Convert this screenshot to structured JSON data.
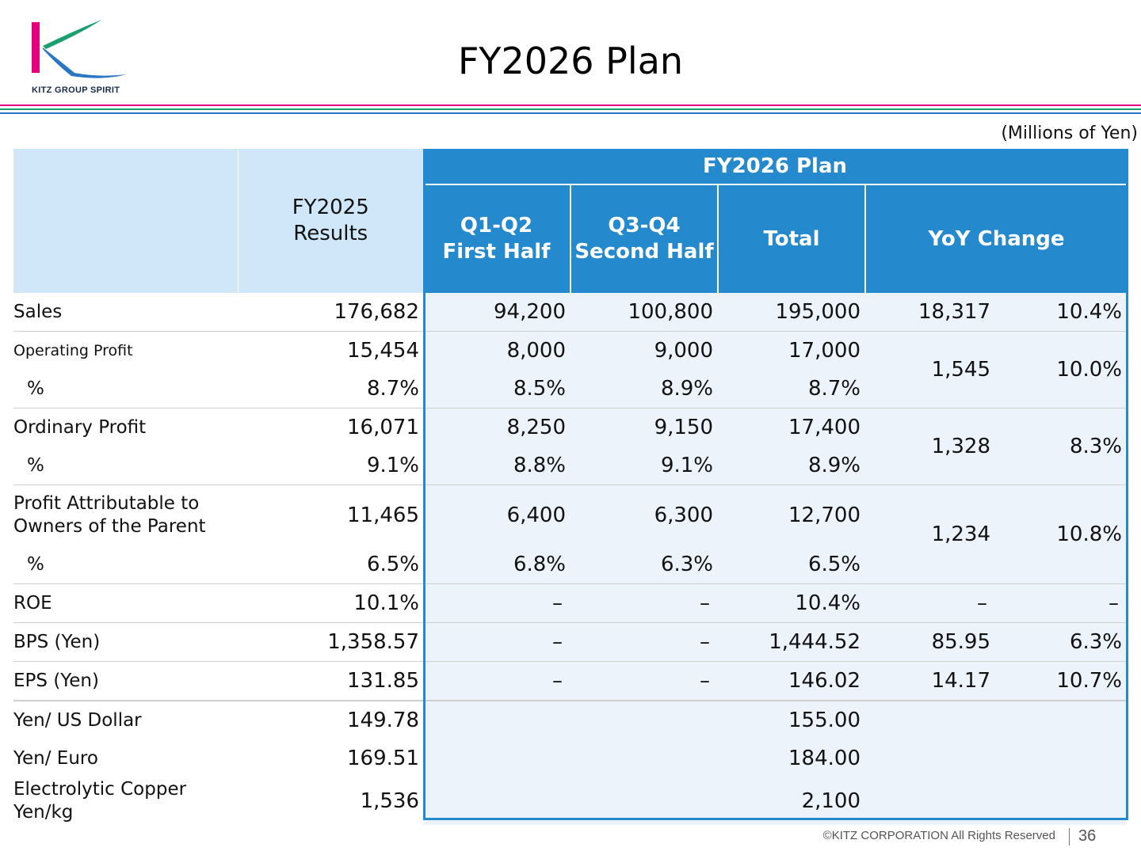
{
  "header": {
    "logo_text": "KITZ GROUP SPIRIT",
    "title": "FY2026 Plan",
    "unit": "(Millions of Yen)"
  },
  "colors": {
    "brand_magenta": "#e4007f",
    "brand_green": "#1aa06e",
    "brand_blue": "#2589ce",
    "header_light": "#cfe7f9",
    "plan_cell_bg": "#edf3fa"
  },
  "table": {
    "headers": {
      "fy2025": [
        "FY2025",
        "Results"
      ],
      "plan_group": "FY2026 Plan",
      "q1q2": [
        "Q1-Q2",
        "First Half"
      ],
      "q3q4": [
        "Q3-Q4",
        "Second Half"
      ],
      "total": "Total",
      "yoy": "YoY Change"
    },
    "rows": {
      "sales": {
        "label": "Sales",
        "fy2025": "176,682",
        "h1": "94,200",
        "h2": "100,800",
        "total": "195,000",
        "yoy_amount": "18,317",
        "yoy_pct": "10.4%"
      },
      "op": {
        "label": "Operating Profit",
        "fy2025": "15,454",
        "h1": "8,000",
        "h2": "9,000",
        "total": "17,000",
        "yoy_amount": "1,545",
        "yoy_pct": "10.0%"
      },
      "op_pct": {
        "label": "%",
        "fy2025": "8.7%",
        "h1": "8.5%",
        "h2": "8.9%",
        "total": "8.7%"
      },
      "ord": {
        "label": "Ordinary Profit",
        "fy2025": "16,071",
        "h1": "8,250",
        "h2": "9,150",
        "total": "17,400",
        "yoy_amount": "1,328",
        "yoy_pct": "8.3%"
      },
      "ord_pct": {
        "label": "%",
        "fy2025": "9.1%",
        "h1": "8.8%",
        "h2": "9.1%",
        "total": "8.9%"
      },
      "np": {
        "label_line1": "Profit Attributable to",
        "label_line2": "Owners of the Parent",
        "fy2025": "11,465",
        "h1": "6,400",
        "h2": "6,300",
        "total": "12,700",
        "yoy_amount": "1,234",
        "yoy_pct": "10.8%"
      },
      "np_pct": {
        "label": "%",
        "fy2025": "6.5%",
        "h1": "6.8%",
        "h2": "6.3%",
        "total": "6.5%"
      },
      "roe": {
        "label": "ROE",
        "fy2025": "10.1%",
        "h1": "–",
        "h2": "–",
        "total": "10.4%",
        "yoy_amount": "–",
        "yoy_pct": "–"
      },
      "bps": {
        "label": "BPS (Yen)",
        "fy2025": "1,358.57",
        "h1": "–",
        "h2": "–",
        "total": "1,444.52",
        "yoy_amount": "85.95",
        "yoy_pct": "6.3%"
      },
      "eps": {
        "label": "EPS (Yen)",
        "fy2025": "131.85",
        "h1": "–",
        "h2": "–",
        "total": "146.02",
        "yoy_amount": "14.17",
        "yoy_pct": "10.7%"
      },
      "usd": {
        "label": "Yen/ US Dollar",
        "fy2025": "149.78",
        "total": "155.00"
      },
      "eur": {
        "label": "Yen/ Euro",
        "fy2025": "169.51",
        "total": "184.00"
      },
      "copper": {
        "label_line1": "Electrolytic Copper",
        "label_line2": "Yen/kg",
        "fy2025": "1,536",
        "total": "2,100"
      }
    }
  },
  "footer": {
    "copyright": "©KITZ CORPORATION All Rights Reserved",
    "page": "36"
  }
}
